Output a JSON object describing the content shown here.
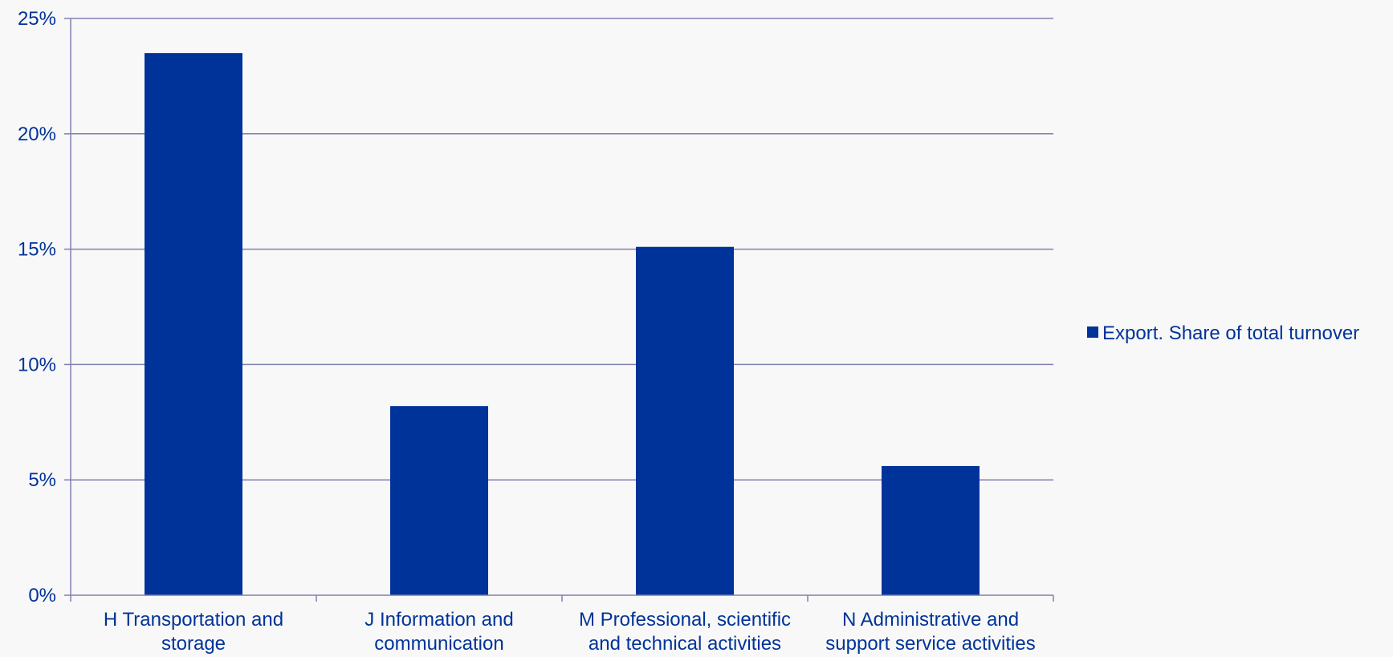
{
  "chart_data": {
    "type": "bar",
    "categories": [
      [
        "H Transportation and",
        "storage"
      ],
      [
        "J Information and",
        "communication"
      ],
      [
        "M Professional, scientific",
        "and technical activities"
      ],
      [
        "N Administrative and",
        "support service activities"
      ]
    ],
    "series": [
      {
        "name": "Export. Share of total turnover",
        "values": [
          23.5,
          8.2,
          15.1,
          5.6
        ]
      }
    ],
    "ylim": [
      0,
      25
    ],
    "yticks": [
      0,
      5,
      10,
      15,
      20,
      25
    ],
    "ytick_labels": [
      "0%",
      "5%",
      "10%",
      "15%",
      "20%",
      "25%"
    ],
    "title": "",
    "xlabel": "",
    "ylabel": "",
    "grid": true,
    "legend_position": "right",
    "colors": {
      "bar": "#003399",
      "grid": "#8080b0",
      "axis": "#8080b0",
      "text": "#003399"
    }
  }
}
